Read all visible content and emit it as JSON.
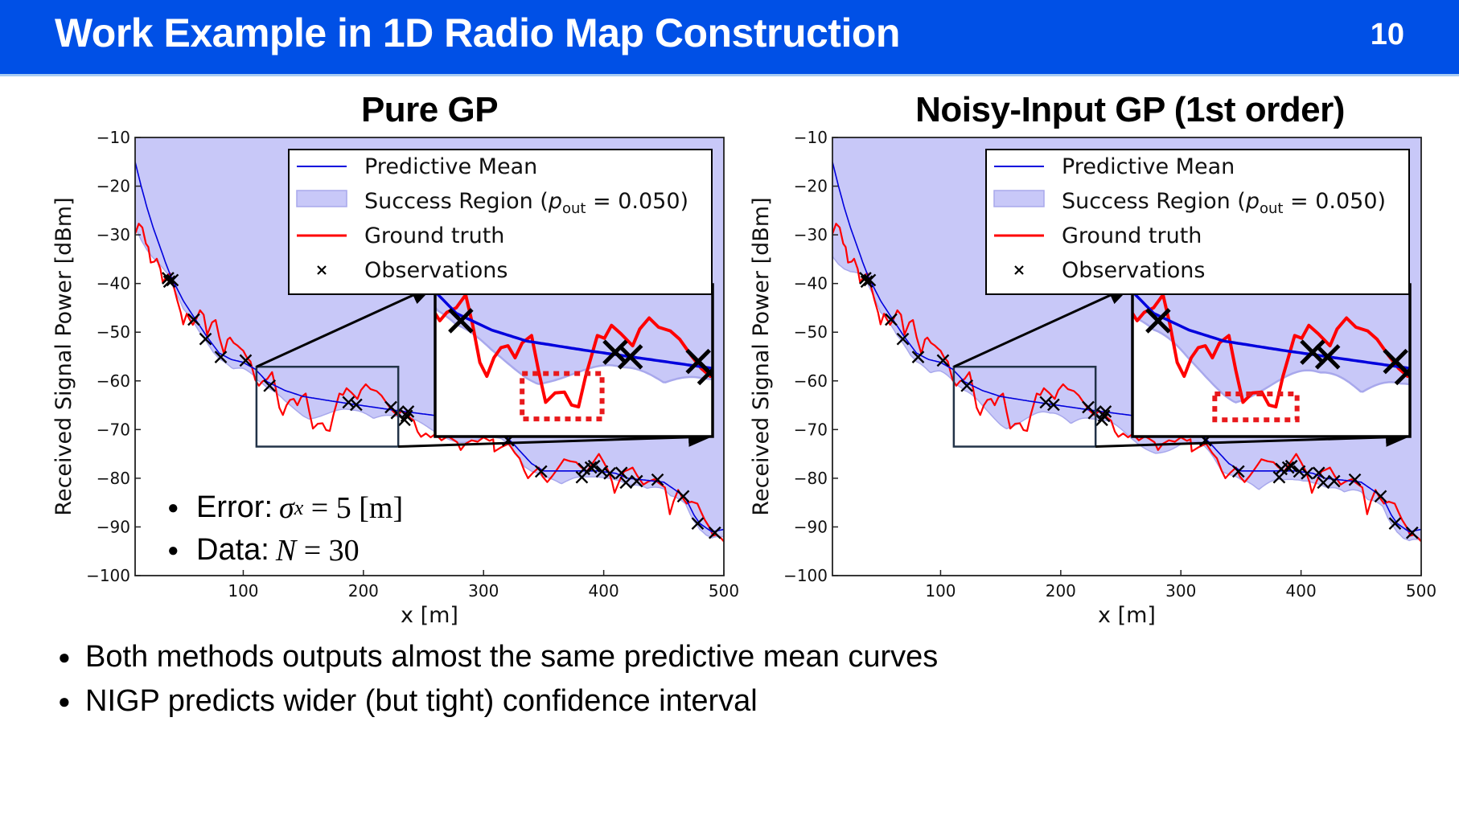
{
  "header": {
    "title": "Work Example in 1D Radio Map Construction",
    "page_number": "10",
    "bg_color": "#0050e6"
  },
  "annotation": {
    "error_label": "Error:",
    "error_math": "σ",
    "error_sub": "x",
    "error_rest": " = 5 [m]",
    "data_label": "Data:",
    "data_math": "N",
    "data_rest": " = 30"
  },
  "bullets": [
    "Both methods outputs almost the same predictive mean curves",
    "NIGP predicts wider (but tight) confidence interval"
  ],
  "legend": {
    "mean": "Predictive Mean",
    "success": "Success Region (",
    "success_p": "p",
    "success_sub": "out",
    "success_tail": " = 0.050)",
    "truth": "Ground truth",
    "obs": "Observations"
  },
  "colors": {
    "mean": "#0000dd",
    "truth": "#ff0000",
    "region": "#c8c8f8",
    "region_edge": "#a8a8ec",
    "obs": "#000000"
  },
  "chart_data": [
    {
      "type": "line",
      "title": "Pure GP",
      "xlabel": "x [m]",
      "ylabel": "Received Signal Power [dBm]",
      "xlim": [
        10,
        500
      ],
      "ylim": [
        -100,
        -10
      ],
      "xticks": [
        100,
        200,
        300,
        400,
        500
      ],
      "yticks": [
        -10,
        -20,
        -30,
        -40,
        -50,
        -60,
        -70,
        -80,
        -90,
        -100
      ],
      "legend_position": "top-right",
      "inset": {
        "xlim": [
          111,
          229
        ],
        "ylim": [
          -73.5,
          -57.1
        ],
        "highlight_x": [
          148,
          182
        ],
        "highlight_y": [
          -71.6,
          -66.7
        ]
      },
      "region_width_scale": 1.0
    },
    {
      "type": "line",
      "title": "Noisy-Input GP (1st order)",
      "xlabel": "x [m]",
      "ylabel": "Received Signal Power [dBm]",
      "xlim": [
        10,
        500
      ],
      "ylim": [
        -100,
        -10
      ],
      "xticks": [
        100,
        200,
        300,
        400,
        500
      ],
      "yticks": [
        -10,
        -20,
        -30,
        -40,
        -50,
        -60,
        -70,
        -80,
        -90,
        -100
      ],
      "legend_position": "top-right",
      "inset": {
        "xlim": [
          111,
          229
        ],
        "ylim": [
          -73.5,
          -57.1
        ],
        "highlight_x": [
          146,
          181
        ],
        "highlight_y": [
          -71.7,
          -68.9
        ]
      },
      "region_width_scale": 1.45
    }
  ],
  "series": {
    "mean": [
      [
        10,
        -15
      ],
      [
        15,
        -20
      ],
      [
        20,
        -24.5
      ],
      [
        25,
        -28.5
      ],
      [
        30,
        -32
      ],
      [
        35,
        -35.5
      ],
      [
        40,
        -38.7
      ],
      [
        50,
        -43.5
      ],
      [
        60,
        -47.3
      ],
      [
        70,
        -51
      ],
      [
        80,
        -54.3
      ],
      [
        90,
        -55.6
      ],
      [
        100,
        -56.2
      ],
      [
        110,
        -57.6
      ],
      [
        120,
        -60.2
      ],
      [
        135,
        -62
      ],
      [
        150,
        -63.2
      ],
      [
        175,
        -64.2
      ],
      [
        200,
        -65.1
      ],
      [
        225,
        -66
      ],
      [
        250,
        -66.8
      ],
      [
        275,
        -67.6
      ],
      [
        300,
        -68.5
      ],
      [
        315,
        -70.5
      ],
      [
        325,
        -73
      ],
      [
        340,
        -77
      ],
      [
        350,
        -78.5
      ],
      [
        365,
        -78.5
      ],
      [
        380,
        -78.5
      ],
      [
        395,
        -78.5
      ],
      [
        410,
        -79
      ],
      [
        420,
        -80
      ],
      [
        435,
        -80.4
      ],
      [
        450,
        -80.8
      ],
      [
        460,
        -82.5
      ],
      [
        468,
        -84
      ],
      [
        475,
        -87.5
      ],
      [
        480,
        -89.3
      ],
      [
        490,
        -91
      ],
      [
        500,
        -90.5
      ]
    ],
    "truth": [
      [
        10,
        -29.8
      ],
      [
        11,
        -29.1
      ],
      [
        13,
        -27.7
      ],
      [
        16,
        -28.5
      ],
      [
        19,
        -31.8
      ],
      [
        21,
        -32.5
      ],
      [
        23,
        -35.7
      ],
      [
        26,
        -35.5
      ],
      [
        28,
        -34.9
      ],
      [
        31,
        -37
      ],
      [
        33,
        -39.8
      ],
      [
        36,
        -38.5
      ],
      [
        39,
        -37.9
      ],
      [
        42,
        -40.5
      ],
      [
        45,
        -43.4
      ],
      [
        48,
        -46
      ],
      [
        50,
        -48.4
      ],
      [
        53,
        -46.2
      ],
      [
        55,
        -47.2
      ],
      [
        58,
        -48.5
      ],
      [
        61,
        -47.2
      ],
      [
        64,
        -45.5
      ],
      [
        67,
        -46.4
      ],
      [
        70,
        -50.5
      ],
      [
        74,
        -48
      ],
      [
        77,
        -47.5
      ],
      [
        80,
        -51
      ],
      [
        84,
        -54.4
      ],
      [
        87,
        -51.5
      ],
      [
        89,
        -51.1
      ],
      [
        92,
        -52.2
      ],
      [
        95,
        -52.7
      ],
      [
        98,
        -53.4
      ],
      [
        100,
        -53.8
      ],
      [
        103,
        -55.2
      ],
      [
        106,
        -56
      ],
      [
        110,
        -59.8
      ],
      [
        113,
        -61
      ],
      [
        116,
        -60.1
      ],
      [
        120,
        -59.6
      ],
      [
        124,
        -58.2
      ],
      [
        127,
        -61.5
      ],
      [
        130,
        -65.5
      ],
      [
        133,
        -67
      ],
      [
        136,
        -65
      ],
      [
        139,
        -63.9
      ],
      [
        142,
        -63.7
      ],
      [
        145,
        -65
      ],
      [
        148,
        -63.4
      ],
      [
        152,
        -62.6
      ],
      [
        155,
        -66.4
      ],
      [
        158,
        -69.8
      ],
      [
        162,
        -68.8
      ],
      [
        166,
        -68.7
      ],
      [
        169,
        -70.1
      ],
      [
        172,
        -70.3
      ],
      [
        175,
        -67
      ],
      [
        180,
        -62.6
      ],
      [
        183,
        -62.9
      ],
      [
        186,
        -61.5
      ],
      [
        190,
        -62.4
      ],
      [
        195,
        -63.7
      ],
      [
        198,
        -61.9
      ],
      [
        202,
        -60.7
      ],
      [
        206,
        -61.7
      ],
      [
        211,
        -62.1
      ],
      [
        215,
        -63
      ],
      [
        220,
        -64.8
      ],
      [
        224,
        -66.1
      ],
      [
        228,
        -67
      ],
      [
        232,
        -66.2
      ],
      [
        235,
        -66.5
      ],
      [
        239,
        -67.6
      ],
      [
        242,
        -68.2
      ],
      [
        245,
        -70.4
      ],
      [
        248,
        -71.5
      ],
      [
        252,
        -70.8
      ],
      [
        256,
        -71.6
      ],
      [
        260,
        -70.9
      ],
      [
        265,
        -72.2
      ],
      [
        270,
        -71.4
      ],
      [
        273,
        -71.8
      ],
      [
        278,
        -72.6
      ],
      [
        281,
        -74.2
      ],
      [
        285,
        -72.9
      ],
      [
        290,
        -72.2
      ],
      [
        295,
        -72.5
      ],
      [
        300,
        -71.6
      ],
      [
        305,
        -72.3
      ],
      [
        308,
        -72
      ],
      [
        309,
        -74.5
      ],
      [
        315,
        -73.6
      ],
      [
        321,
        -72.9
      ],
      [
        326,
        -74.8
      ],
      [
        330,
        -75.9
      ],
      [
        334,
        -78.5
      ],
      [
        337,
        -80
      ],
      [
        341,
        -78.9
      ],
      [
        346,
        -77.8
      ],
      [
        349,
        -79.6
      ],
      [
        353,
        -80.8
      ],
      [
        357,
        -79.6
      ],
      [
        360,
        -78.6
      ],
      [
        364,
        -77.2
      ],
      [
        367,
        -76.1
      ],
      [
        372,
        -76.5
      ],
      [
        377,
        -76.7
      ],
      [
        381,
        -77.7
      ],
      [
        386,
        -78.6
      ],
      [
        391,
        -76.8
      ],
      [
        396,
        -75
      ],
      [
        400,
        -76.7
      ],
      [
        404,
        -78.6
      ],
      [
        407,
        -80.8
      ],
      [
        409,
        -83
      ],
      [
        413,
        -80.6
      ],
      [
        417,
        -78.6
      ],
      [
        420,
        -78.3
      ],
      [
        424,
        -77.8
      ],
      [
        428,
        -79.5
      ],
      [
        433,
        -81.3
      ],
      [
        437,
        -80.7
      ],
      [
        442,
        -80.2
      ],
      [
        446,
        -81
      ],
      [
        451,
        -81.9
      ],
      [
        453,
        -84.6
      ],
      [
        455,
        -87.4
      ],
      [
        458,
        -84.8
      ],
      [
        462,
        -82.4
      ],
      [
        465,
        -83.8
      ],
      [
        469,
        -85.2
      ],
      [
        473,
        -84.8
      ],
      [
        478,
        -85.2
      ],
      [
        481,
        -86.9
      ],
      [
        484,
        -88.5
      ],
      [
        488,
        -90.1
      ],
      [
        491,
        -91.8
      ],
      [
        494,
        -91.6
      ],
      [
        498,
        -92.4
      ],
      [
        500,
        -93
      ]
    ],
    "observations": [
      [
        37.4,
        -38.9
      ],
      [
        41.1,
        -39.3
      ],
      [
        38.5,
        -39.6
      ],
      [
        58.8,
        -47.4
      ],
      [
        68.6,
        -51.4
      ],
      [
        81.3,
        -55.1
      ],
      [
        102,
        -55.8
      ],
      [
        121.9,
        -61
      ],
      [
        187.6,
        -64.4
      ],
      [
        194,
        -64.9
      ],
      [
        222.9,
        -65.4
      ],
      [
        227.8,
        -66.6
      ],
      [
        234.2,
        -68
      ],
      [
        237.2,
        -66.3
      ],
      [
        236,
        -67.2
      ],
      [
        320.5,
        -72.2
      ],
      [
        347.9,
        -78.6
      ],
      [
        381.8,
        -79.8
      ],
      [
        383.6,
        -78.1
      ],
      [
        389.3,
        -77.8
      ],
      [
        392,
        -77.5
      ],
      [
        398.6,
        -78.6
      ],
      [
        414.8,
        -78.9
      ],
      [
        418.5,
        -80.9
      ],
      [
        427.5,
        -80.6
      ],
      [
        405,
        -79
      ],
      [
        444.8,
        -80.3
      ],
      [
        466.2,
        -83.7
      ],
      [
        478.2,
        -89.3
      ],
      [
        492.5,
        -91.2
      ]
    ]
  }
}
